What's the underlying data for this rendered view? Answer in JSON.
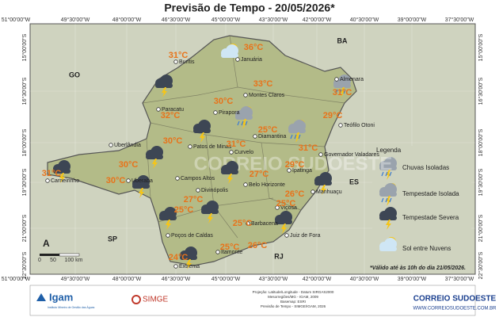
{
  "title": "Previsão de Tempo - 20/05/2026*",
  "longitudes": [
    "51°00'00\"W",
    "49°30'00\"W",
    "48°00'00\"W",
    "46°30'00\"W",
    "45°00'00\"W",
    "43°30'00\"W",
    "42°00'00\"W",
    "40°30'00\"W",
    "39°00'00\"W",
    "37°30'00\"W"
  ],
  "latitudes": [
    "15°00'00\"S",
    "16°30'00\"S",
    "18°00'00\"S",
    "19°30'00\"S",
    "21°00'00\"S",
    "22°30'00\"S"
  ],
  "states": [
    "BA",
    "GO",
    "ES",
    "SP",
    "RJ"
  ],
  "cities": [
    {
      "name": "Buritis",
      "temp": "31°C"
    },
    {
      "name": "Januária",
      "temp": "36°C"
    },
    {
      "name": "Almenara",
      "temp": "31°C"
    },
    {
      "name": "Montes Claros",
      "temp": "33°C"
    },
    {
      "name": "Paracatu",
      "temp": "32°C"
    },
    {
      "name": "Pirapora",
      "temp": "30°C"
    },
    {
      "name": "Diamantina",
      "temp": "25°C"
    },
    {
      "name": "Teófilo Otoni",
      "temp": "29°C"
    },
    {
      "name": "Patos de Minas",
      "temp": "30°C"
    },
    {
      "name": "Curvelo",
      "temp": "31°C"
    },
    {
      "name": "Governador Valadares",
      "temp": "31°C"
    },
    {
      "name": "Uberlândia",
      "temp": "30°C"
    },
    {
      "name": "Carneirinho",
      "temp": "31°C"
    },
    {
      "name": "Uberaba",
      "temp": "30°C"
    },
    {
      "name": "Campos Altos",
      "temp": null
    },
    {
      "name": "Ipatinga",
      "temp": "29°C"
    },
    {
      "name": "Belo Horizonte",
      "temp": "27°C"
    },
    {
      "name": "Manhuaçu",
      "temp": "26°C"
    },
    {
      "name": "Divinópolis",
      "temp": "27°C"
    },
    {
      "name": "Viçosa",
      "temp": "25°C"
    },
    {
      "name": "Barbacena",
      "temp": "25°C"
    },
    {
      "name": "Poços de Caldas",
      "temp": "25°C"
    },
    {
      "name": "Juiz de Fora",
      "temp": "26°C"
    },
    {
      "name": "Itamonte",
      "temp": "25°C"
    },
    {
      "name": "Extrema",
      "temp": "24°C"
    }
  ],
  "legend": {
    "title": "Legenda",
    "items": [
      "Chuvas Isoladas",
      "Tempestade Isolada",
      "Tempestade Severa",
      "Sol entre Nuvens"
    ]
  },
  "scale": {
    "north": "A",
    "labels": [
      "0",
      "50",
      "100 km"
    ]
  },
  "note": "*Válido até às 10h do dia 21/05/2026.",
  "watermark": "CORREIO SUDOESTE",
  "footer": {
    "igam": "Igam",
    "igam_sub": "Instituto Mineiro de Gestão das Águas",
    "simge": "SIMGE",
    "projection": [
      "Projeção: Latitude/Longitude - Datum SIRGAS2000",
      "Mesorregiões/MG - IGAM, 2009",
      "Basemap: ESRI",
      "Previsão de Tempo - SIMGE/IGAM, 2026"
    ],
    "brand": "CORREIO SUDOESTE",
    "site": "WWW.CORREIOSUDOESTE.COM.BR"
  }
}
